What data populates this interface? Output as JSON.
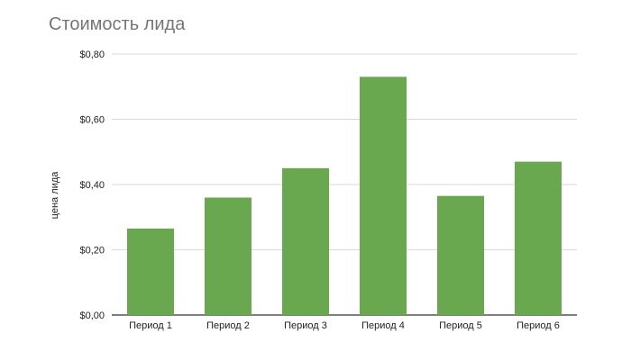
{
  "chart_data": {
    "type": "bar",
    "title": "Стоимость лида",
    "xlabel": "",
    "ylabel": "цена лида",
    "categories": [
      "Период 1",
      "Период 2",
      "Период 3",
      "Период 4",
      "Период 5",
      "Период 6"
    ],
    "values": [
      0.265,
      0.36,
      0.45,
      0.73,
      0.365,
      0.47
    ],
    "ylim": [
      0,
      0.8
    ],
    "yticks": [
      0,
      0.2,
      0.4,
      0.6,
      0.8
    ],
    "ytick_labels": [
      "$0,00",
      "$0,20",
      "$0,40",
      "$0,60",
      "$0,80"
    ],
    "bar_color": "#6aa84f",
    "grid": true,
    "legend": "none"
  }
}
